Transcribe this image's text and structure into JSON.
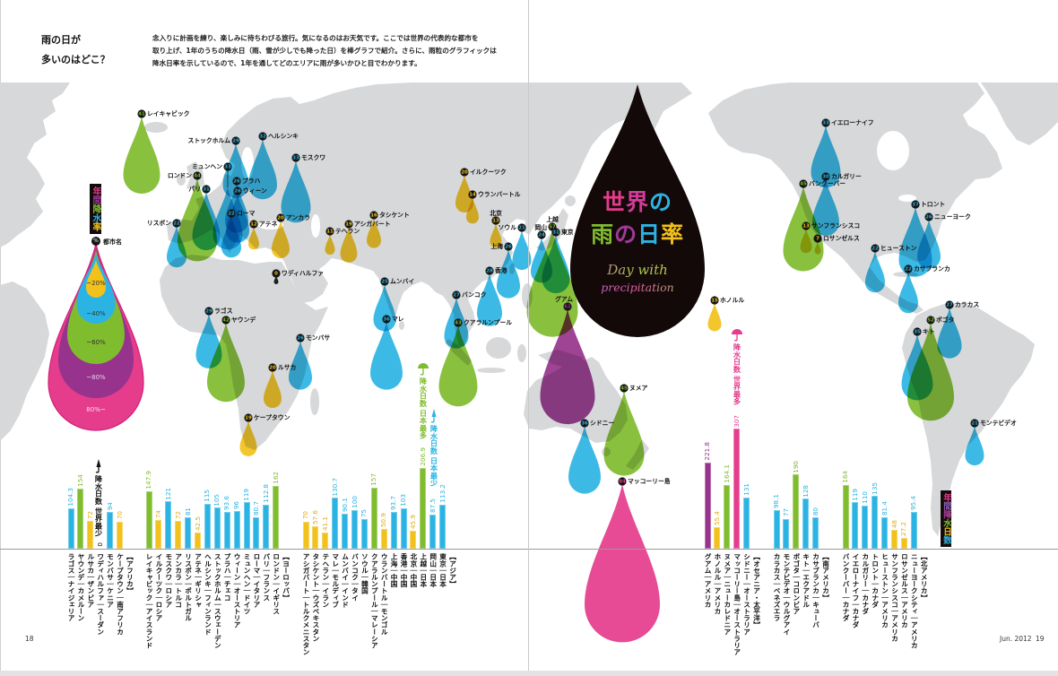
{
  "header": {
    "title_lines": [
      "雨の日が",
      "多いのはどこ？"
    ],
    "intro_lines": [
      "念入りに計画を練り、楽しみに待ちわびる旅行。気になるのはお天気です。ここでは世界の代表的な都市を",
      "取り上げ、1年のうちの降水日（雨、雪が少しでも降った日）を棒グラフで紹介。さらに、雨粒のグラフィックは",
      "降水日率を示しているので、1年を通してどのエリアに雨が多いかひと目でわかります。"
    ]
  },
  "feature_title": {
    "line1": [
      {
        "char": "世",
        "color": "#e53c8c"
      },
      {
        "char": "界",
        "color": "#d63c9a"
      },
      {
        "char": "の",
        "color": "#2bb4e3"
      }
    ],
    "line2": [
      {
        "char": "雨",
        "color": "#7fbc2e"
      },
      {
        "char": "の",
        "color": "#a03a9a"
      },
      {
        "char": "日",
        "color": "#2bb4e3"
      },
      {
        "char": "率",
        "color": "#f2c11b"
      }
    ],
    "subtitle_line1": "Day with",
    "subtitle_line2": "precipitation",
    "drop_color": "#140909"
  },
  "legend_rate": {
    "title_chars": [
      {
        "char": "年",
        "color": "#e53c8c"
      },
      {
        "char": "間",
        "color": "#a03a9a"
      },
      {
        "char": "降",
        "color": "#7fbc2e"
      },
      {
        "char": "水",
        "color": "#2bb4e3"
      },
      {
        "char": "率",
        "color": "#f2c11b"
      }
    ],
    "marker_symbol": "%",
    "city_label": "都市名",
    "levels": [
      {
        "label": "~20%",
        "color": "#f2c11b"
      },
      {
        "label": "~40%",
        "color": "#2bb4e3"
      },
      {
        "label": "~60%",
        "color": "#7fbc2e"
      },
      {
        "label": "~80%",
        "color": "#97338c"
      },
      {
        "label": "80%~",
        "color": "#e53c8c"
      }
    ]
  },
  "legend_days": {
    "title_chars": [
      {
        "char": "年",
        "color": "#e53c8c"
      },
      {
        "char": "間",
        "color": "#8a5db0"
      },
      {
        "char": "降",
        "color": "#b0409e"
      },
      {
        "char": "水",
        "color": "#7fbc2e"
      },
      {
        "char": "日",
        "color": "#f2c11b"
      },
      {
        "char": "数",
        "color": "#2bb4e3"
      }
    ]
  },
  "annotations": [
    {
      "city": "ワディハルファ",
      "text": "降水日数 世界最少",
      "color": "#111111",
      "icon": "umbrella-closed-icon"
    },
    {
      "city": "上越",
      "text": "降水日数 日本最多",
      "color": "#7fbc2e",
      "icon": "umbrella-open-icon"
    },
    {
      "city": "岡山",
      "text": "降水日数 日本最少",
      "color": "#2bb4e3",
      "icon": "umbrella-closed-icon"
    },
    {
      "city": "マッコーリー島",
      "text": "降水日数 世界最多",
      "color": "#e53c8c",
      "icon": "umbrella-open-icon"
    }
  ],
  "chart_data": {
    "type": "bar",
    "title": "年間降水日数",
    "ylabel": "年間降水日数",
    "secondary_encoding": "年間降水率 (%) shown as rain-drop size/colour on map",
    "separator": "｜",
    "groups": [
      {
        "name": "【アフリカ】",
        "cities": [
          {
            "name": "ラゴス",
            "country": "ナイジェリア",
            "days": 104.3,
            "rate": 29,
            "level": 1
          },
          {
            "name": "ヤウンデ",
            "country": "カメルーン",
            "days": 154,
            "rate": 42,
            "level": 2
          },
          {
            "name": "ルサカ",
            "country": "ザンビア",
            "days": 72,
            "rate": 20,
            "level": 0
          },
          {
            "name": "ワディハルファ",
            "country": "スーダン",
            "days": 0,
            "rate": 0,
            "level": 0
          },
          {
            "name": "モンバサ",
            "country": "ケニア",
            "days": 94,
            "rate": 26,
            "level": 1
          },
          {
            "name": "ケープタウン",
            "country": "南アフリカ",
            "days": 70,
            "rate": 19,
            "level": 0
          }
        ]
      },
      {
        "name": "【ヨーロッパ】",
        "cities": [
          {
            "name": "レイキャビック",
            "country": "アイスランド",
            "days": 147.9,
            "rate": 41,
            "level": 2
          },
          {
            "name": "イルクーツク",
            "country": "ロシア",
            "days": 74,
            "rate": 20,
            "level": 0
          },
          {
            "name": "モスクワ",
            "country": "ロシア",
            "days": 121,
            "rate": 33,
            "level": 1
          },
          {
            "name": "アンカラ",
            "country": "トルコ",
            "days": 72,
            "rate": 20,
            "level": 0
          },
          {
            "name": "リスボン",
            "country": "ポルトガル",
            "days": 81,
            "rate": 22,
            "level": 1
          },
          {
            "name": "アテネ",
            "country": "ギリシャ",
            "days": 42.5,
            "rate": 12,
            "level": 0
          },
          {
            "name": "ヘルシンキ",
            "country": "フィンランド",
            "days": 115,
            "rate": 32,
            "level": 1
          },
          {
            "name": "ストックホルム",
            "country": "スウェーデン",
            "days": 105,
            "rate": 29,
            "level": 1
          },
          {
            "name": "プラハ",
            "country": "チェコ",
            "days": 93.6,
            "rate": 26,
            "level": 1
          },
          {
            "name": "ウィーン",
            "country": "オーストリア",
            "days": 96,
            "rate": 26,
            "level": 1
          },
          {
            "name": "ミュンヘン",
            "country": "ドイツ",
            "days": 119,
            "rate": 33,
            "level": 1
          },
          {
            "name": "ローマ",
            "country": "イタリア",
            "days": 80.7,
            "rate": 22,
            "level": 1
          },
          {
            "name": "パリ",
            "country": "フランス",
            "days": 112.8,
            "rate": 31,
            "level": 1
          },
          {
            "name": "ロンドン",
            "country": "イギリス",
            "days": 162,
            "rate": 44,
            "level": 2
          }
        ]
      },
      {
        "name": "【アジア】",
        "cities": [
          {
            "name": "アシガバート",
            "country": "トルクメニスタン",
            "days": 70,
            "rate": 19,
            "level": 0
          },
          {
            "name": "タシケント",
            "country": "ウズベキスタン",
            "days": 57.6,
            "rate": 16,
            "level": 0
          },
          {
            "name": "テヘラン",
            "country": "イラン",
            "days": 41.1,
            "rate": 11,
            "level": 0
          },
          {
            "name": "マレ",
            "country": "モルディブ",
            "days": 130.7,
            "rate": 36,
            "level": 1
          },
          {
            "name": "ムンバイ",
            "country": "インド",
            "days": 90.1,
            "rate": 25,
            "level": 1
          },
          {
            "name": "バンコク",
            "country": "タイ",
            "days": 100,
            "rate": 27,
            "level": 1
          },
          {
            "name": "ソウル",
            "country": "韓国",
            "days": 75,
            "rate": 21,
            "level": 1
          },
          {
            "name": "クアラルンプール",
            "country": "マレーシア",
            "days": 157,
            "rate": 43,
            "level": 2
          },
          {
            "name": "ウランバートル",
            "country": "モンゴル",
            "days": 50.9,
            "rate": 14,
            "level": 0
          },
          {
            "name": "上海",
            "country": "中国",
            "days": 93.7,
            "rate": 26,
            "level": 1
          },
          {
            "name": "香港",
            "country": "中国",
            "days": 103,
            "rate": 28,
            "level": 1
          },
          {
            "name": "北京",
            "country": "中国",
            "days": 45.9,
            "rate": 13,
            "level": 0
          },
          {
            "name": "上越",
            "country": "日本",
            "days": 206.9,
            "rate": 57,
            "level": 2
          },
          {
            "name": "岡山",
            "country": "日本",
            "days": 87.5,
            "rate": 24,
            "level": 1
          },
          {
            "name": "東京",
            "country": "日本",
            "days": 113.2,
            "rate": 31,
            "level": 1
          }
        ]
      },
      {
        "name": "【オセアニア・太平洋】",
        "cities": [
          {
            "name": "グアム",
            "country": "アメリカ",
            "days": 221.8,
            "rate": 61,
            "level": 3
          },
          {
            "name": "ホノルル",
            "country": "アメリカ",
            "days": 55.4,
            "rate": 15,
            "level": 0
          },
          {
            "name": "ヌメア",
            "country": "ニューカレドニア",
            "days": 164.1,
            "rate": 45,
            "level": 2
          },
          {
            "name": "マッコーリー島",
            "country": "オーストラリア",
            "days": 307,
            "rate": 84,
            "level": 4
          },
          {
            "name": "シドニー",
            "country": "オーストラリア",
            "days": 131,
            "rate": 36,
            "level": 1
          }
        ]
      },
      {
        "name": "【南アメリカ】",
        "cities": [
          {
            "name": "カラカス",
            "country": "ベネズエラ",
            "days": 98.1,
            "rate": 27,
            "level": 1
          },
          {
            "name": "モンテビデオ",
            "country": "ウルグアイ",
            "days": 77,
            "rate": 21,
            "level": 1
          },
          {
            "name": "ボゴタ",
            "country": "コロンビア",
            "days": 190,
            "rate": 52,
            "level": 2
          },
          {
            "name": "キト",
            "country": "エクアドル",
            "days": 128,
            "rate": 35,
            "level": 1
          },
          {
            "name": "カサブランカ",
            "country": "キューバ",
            "days": 80,
            "rate": 22,
            "level": 1
          }
        ]
      },
      {
        "name": "【北アメリカ】",
        "cities": [
          {
            "name": "バンクーバー",
            "country": "カナダ",
            "days": 164,
            "rate": 45,
            "level": 2
          },
          {
            "name": "イエローナイフ",
            "country": "カナダ",
            "days": 119,
            "rate": 33,
            "level": 1
          },
          {
            "name": "カルガリー",
            "country": "カナダ",
            "days": 110,
            "rate": 30,
            "level": 1
          },
          {
            "name": "トロント",
            "country": "カナダ",
            "days": 135,
            "rate": 37,
            "level": 1
          },
          {
            "name": "ヒューストン",
            "country": "アメリカ",
            "days": 81.4,
            "rate": 22,
            "level": 1
          },
          {
            "name": "サンフランシスコ",
            "country": "アメリカ",
            "days": 48,
            "rate": 13,
            "level": 0
          },
          {
            "name": "ロサンゼルス",
            "country": "アメリカ",
            "days": 27.2,
            "rate": 7,
            "level": 0
          },
          {
            "name": "ニューヨークシティ",
            "country": "アメリカ",
            "days": 95.4,
            "rate": 26,
            "level": 1,
            "map_label": "ニューヨーク"
          }
        ]
      }
    ]
  },
  "footer": {
    "page_left": "18",
    "issue": "Jun. 2012",
    "page_right": "19"
  }
}
